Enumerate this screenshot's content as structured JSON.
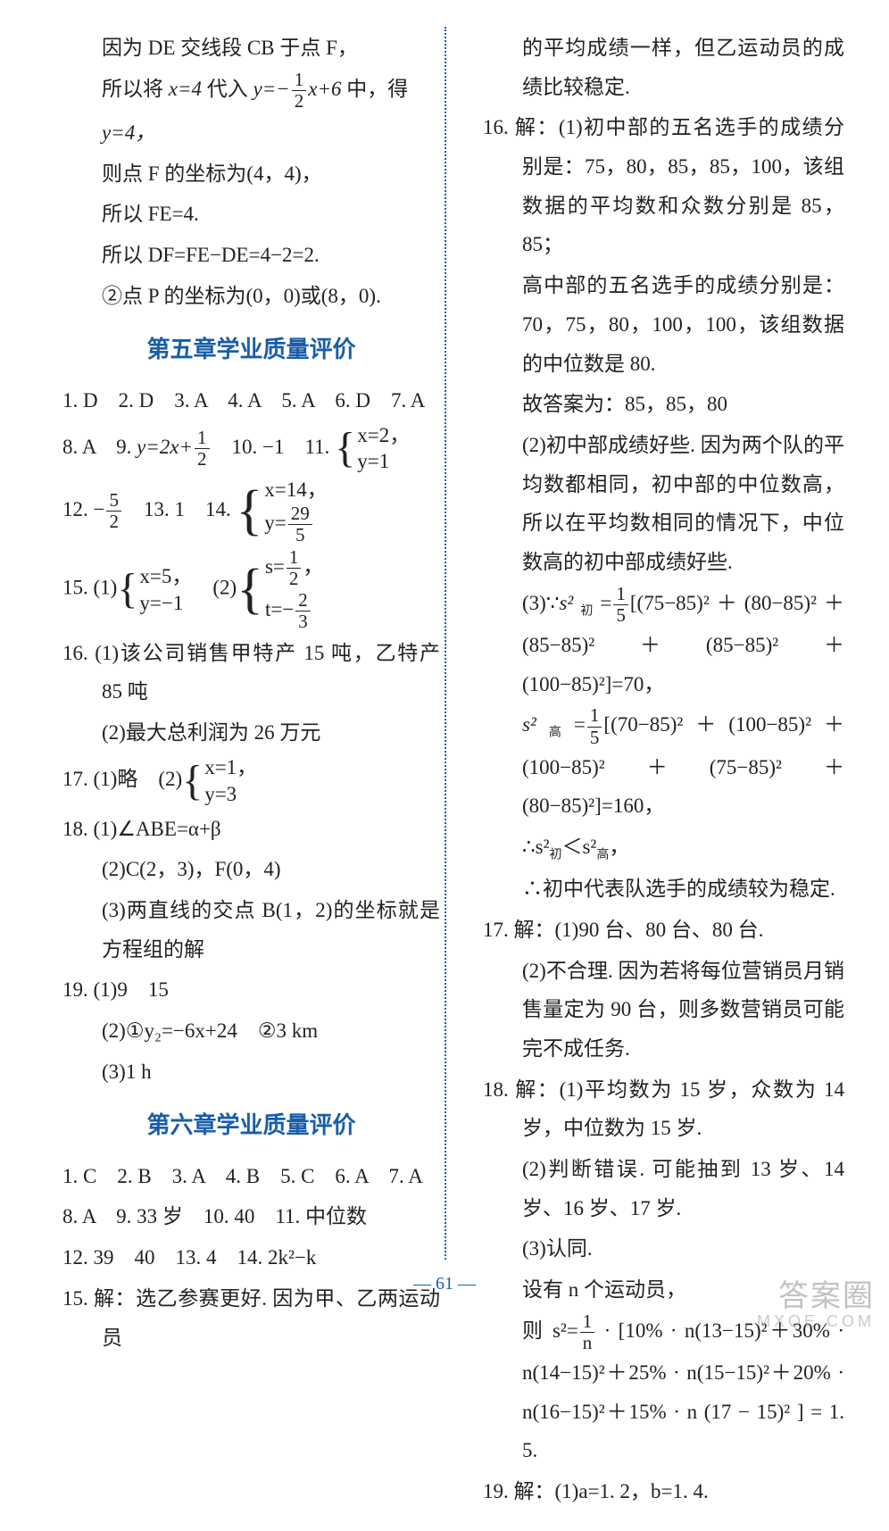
{
  "left": {
    "pre": {
      "l1": "因为 DE 交线段 CB 于点 F，",
      "l2a": "所以将 ",
      "l2b": " 代入 ",
      "l2c": " 中，得",
      "x4": "x=4",
      "eq_lhs": "y=−",
      "eq_num": "1",
      "eq_den": "2",
      "eq_rhs": "x+6",
      "l3": "y=4，",
      "l4": "则点 F 的坐标为(4，4)，",
      "l5": "所以 FE=4.",
      "l6": "所以 DF=FE−DE=4−2=2.",
      "l7": "②点 P 的坐标为(0，0)或(8，0)."
    },
    "sec5_title": "第五章学业质量评价",
    "sec5": {
      "row1": "1. D　2. D　3. A　4. A　5. A　6. D　7. A",
      "q8": "8. A　9. ",
      "q9eq": "y=2x+",
      "q9num": "1",
      "q9den": "2",
      "q10": "　10. −1　11. ",
      "q11a": "x=2，",
      "q11b": "y=1",
      "q12a": "12. −",
      "q12num": "5",
      "q12den": "2",
      "q13": "　13. 1　14. ",
      "q14a": "x=14，",
      "q14b_lhs": "y=",
      "q14b_num": "29",
      "q14b_den": "5",
      "q15": "15. (1)",
      "q15a1": "x=5，",
      "q15a2": "y=−1",
      "q15b": "　(2)",
      "q15b1_lhs": "s=",
      "q15b1_num": "1",
      "q15b1_den": "2",
      "q15b1_tail": "，",
      "q15b2_lhs": "t=−",
      "q15b2_num": "2",
      "q15b2_den": "3",
      "q16": "16. (1)该公司销售甲特产 15 吨，乙特产 85 吨",
      "q16b": "(2)最大总利润为 26 万元",
      "q17": "17. (1)略　(2)",
      "q17a": "x=1，",
      "q17b": "y=3",
      "q18a": "18. (1)∠ABE=α+β",
      "q18b": "(2)C(2，3)，F(0，4)",
      "q18c": "(3)两直线的交点 B(1，2)的坐标就是方程组的解",
      "q19a": "19. (1)9　15",
      "q19b": "(2)①y₂=−6x+24　②3 km",
      "q19c": "(3)1 h"
    },
    "sec6_title": "第六章学业质量评价",
    "sec6": {
      "row1": "1. C　2. B　3. A　4. B　5. C　6. A　7. A",
      "row2": "8. A　9. 33 岁　10. 40　11. 中位数",
      "row3": "12. 39　40　13. 4　14. 2k²−k",
      "q15": "15. 解：选乙参赛更好. 因为甲、乙两运动员"
    }
  },
  "right": {
    "cont": "的平均成绩一样，但乙运动员的成绩比较稳定.",
    "q16a": "16. 解：(1)初中部的五名选手的成绩分别是：75，80，85，85，100，该组数据的平均数和众数分别是 85，85；",
    "q16b": "高中部的五名选手的成绩分别是：70，75，80，100，100，该组数据的中位数是 80.",
    "q16c": "故答案为：85，85，80",
    "q16d": "(2)初中部成绩好些. 因为两个队的平均数都相同，初中部的中位数高，所以在平均数相同的情况下，中位数高的初中部成绩好些.",
    "q16e_pre": "(3)∵",
    "q16e_s1": "s²",
    "q16e_s1sub": "初",
    "q16e_eq": "=",
    "q16e_num": "1",
    "q16e_den": "5",
    "q16e_tail": "[(75−85)²＋(80−85)²＋(85−85)²＋(85−85)²＋(100−85)²]=70，",
    "q16f_s": "s²",
    "q16f_sub": "高",
    "q16f_eq": "=",
    "q16f_num": "1",
    "q16f_den": "5",
    "q16f_tail": "[(70−85)²＋(100−85)²＋(100−85)²＋(75−85)²＋(80−85)²]=160，",
    "q16g": "∴s²",
    "q16g_sub1": "初",
    "q16g_mid": "＜s²",
    "q16g_sub2": "高",
    "q16g_tail": "，",
    "q16h": "∴初中代表队选手的成绩较为稳定.",
    "q17a": "17. 解：(1)90 台、80 台、80 台.",
    "q17b": "(2)不合理. 因为若将每位营销员月销售量定为 90 台，则多数营销员可能完不成任务.",
    "q18a": "18. 解：(1)平均数为 15 岁，众数为 14 岁，中位数为 15 岁.",
    "q18b": "(2)判断错误. 可能抽到 13 岁、14 岁、16 岁、17 岁.",
    "q18c": "(3)认同.",
    "q18d": "设有 n 个运动员，",
    "q18e_pre": "则 s²=",
    "q18e_num": "1",
    "q18e_den": "n",
    "q18e_tail": " · [10% · n(13−15)²＋30% · n(14−15)²＋25% · n(15−15)²＋20% · n(16−15)²＋15% · n (17 − 15)² ] = 1. 5.",
    "q19": "19. 解：(1)a=1. 2，b=1. 4."
  },
  "footer": "— 61 —",
  "watermark": {
    "big": "答案圈",
    "small": "MXQE.COM"
  }
}
